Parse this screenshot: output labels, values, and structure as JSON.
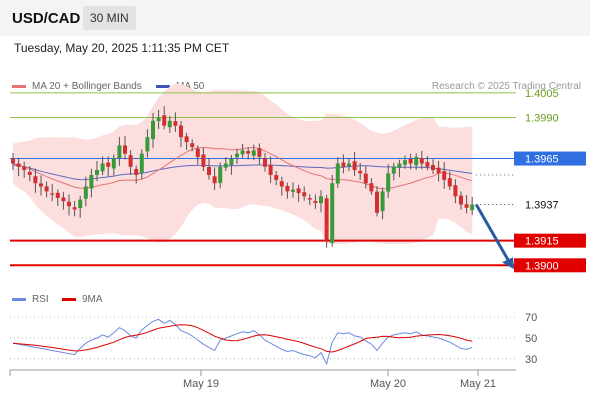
{
  "header": {
    "symbol": "USD/CAD",
    "timeframe": "30 MIN",
    "datetime": "Tuesday, May 20, 2025 1:11:35 PM CET"
  },
  "legend": {
    "ma20": "MA 20 + Bollinger Bands",
    "ma50": "MA 50",
    "research": "Research © 2025 Trading Central"
  },
  "rsi_legend": {
    "rsi": "RSI",
    "ma9": "9MA"
  },
  "colors": {
    "ma20": "#e57373",
    "ma50": "#5c6bc0",
    "bollinger_fill": "#fcdede",
    "candle_up": "#3a9a3a",
    "candle_down": "#d32f2f",
    "resistance": "#8bc34a",
    "support": "#e00000",
    "pivot": "#2f6fe0",
    "arrow": "#2c5aa0"
  },
  "chart_data": [
    {
      "type": "candlestick",
      "title": "USD/CAD",
      "ylim": [
        1.3888,
        1.4025
      ],
      "x_tick_labels": [
        "May 19",
        "May 20",
        "May 21"
      ],
      "levels": [
        {
          "value": 1.4005,
          "label": "1.4005",
          "kind": "resistance"
        },
        {
          "value": 1.399,
          "label": "1.3990",
          "kind": "resistance"
        },
        {
          "value": 1.3965,
          "label": "1.3965",
          "kind": "pivot"
        },
        {
          "value": 1.3915,
          "label": "1.3915",
          "kind": "support"
        },
        {
          "value": 1.39,
          "label": "1.3900",
          "kind": "support"
        }
      ],
      "last_price": {
        "value": 1.3937,
        "label": "1.3937"
      },
      "forecast": {
        "from": 1.3937,
        "to": 1.39
      },
      "close": [
        1.3962,
        1.396,
        1.3958,
        1.3955,
        1.395,
        1.3948,
        1.3945,
        1.3943,
        1.3941,
        1.3939,
        1.3936,
        1.3934,
        1.394,
        1.3948,
        1.3955,
        1.3958,
        1.3962,
        1.396,
        1.3965,
        1.3973,
        1.3968,
        1.396,
        1.3955,
        1.3968,
        1.3978,
        1.3988,
        1.399,
        1.3985,
        1.3988,
        1.3985,
        1.3978,
        1.3975,
        1.3972,
        1.3966,
        1.396,
        1.3955,
        1.395,
        1.396,
        1.3962,
        1.3965,
        1.3968,
        1.397,
        1.3968,
        1.397,
        1.3966,
        1.396,
        1.3955,
        1.3952,
        1.3948,
        1.3945,
        1.3946,
        1.3944,
        1.3942,
        1.394,
        1.3938,
        1.3942,
        1.3915,
        1.395,
        1.3962,
        1.396,
        1.3962,
        1.3958,
        1.3956,
        1.395,
        1.3945,
        1.3932,
        1.3945,
        1.3956,
        1.396,
        1.3962,
        1.3964,
        1.3962,
        1.3966,
        1.3962,
        1.396,
        1.3958,
        1.3956,
        1.3952,
        1.3948,
        1.3942,
        1.3937,
        1.3935,
        1.3937
      ]
    },
    {
      "type": "line",
      "title": "RSI",
      "ylim": [
        25,
        75
      ],
      "y_ticks": [
        70,
        50,
        30
      ],
      "series": [
        {
          "name": "RSI",
          "values": [
            45,
            44,
            43,
            42,
            41,
            40,
            39,
            38,
            37,
            36,
            35,
            34,
            40,
            45,
            48,
            50,
            53,
            51,
            55,
            60,
            57,
            52,
            50,
            58,
            62,
            66,
            68,
            64,
            67,
            63,
            57,
            55,
            52,
            48,
            44,
            41,
            38,
            48,
            50,
            52,
            54,
            56,
            55,
            57,
            53,
            48,
            45,
            42,
            39,
            37,
            38,
            36,
            34,
            33,
            31,
            36,
            25,
            46,
            55,
            54,
            55,
            52,
            51,
            47,
            44,
            38,
            45,
            51,
            53,
            54,
            55,
            54,
            56,
            53,
            52,
            51,
            50,
            48,
            46,
            43,
            40,
            39,
            41
          ]
        },
        {
          "name": "9MA",
          "values": [
            45,
            44.5,
            44,
            43.5,
            43,
            42.3,
            41.6,
            40.9,
            40,
            39.2,
            38.4,
            37.6,
            37.8,
            38.6,
            39.7,
            41,
            42.7,
            44.2,
            46,
            48.3,
            50.6,
            51.9,
            52.8,
            53.8,
            55.5,
            57.6,
            59.4,
            60.4,
            61.3,
            62.3,
            62.7,
            62.5,
            61.7,
            59.9,
            57.3,
            54.6,
            51.7,
            49.9,
            48.1,
            47.4,
            47.5,
            48.6,
            50.2,
            51.8,
            53,
            53.1,
            52.3,
            51.2,
            50.1,
            48.7,
            47.7,
            46.4,
            44.8,
            42.9,
            41.2,
            39.7,
            37.1,
            36.5,
            38,
            40.1,
            42.2,
            44.3,
            46.6,
            49.5,
            50.4,
            50.7,
            51.6,
            51.5,
            50.8,
            50.2,
            50.5,
            50.8,
            51.8,
            52.3,
            52.9,
            53.2,
            53.4,
            52.9,
            52.2,
            51.1,
            49.7,
            48,
            46.8
          ]
        }
      ]
    }
  ]
}
